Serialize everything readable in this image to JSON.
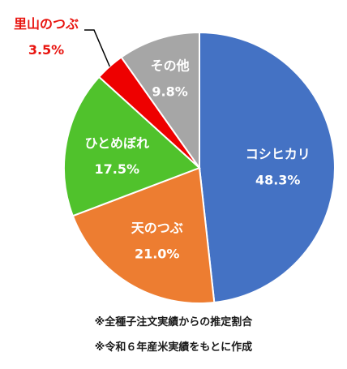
{
  "chart_data": {
    "type": "pie",
    "start_angle_deg": 0,
    "direction": "clockwise",
    "slices": [
      {
        "label": "コシヒカリ",
        "value": 48.3,
        "value_label": "48.3%",
        "color": "#4472c4",
        "label_position": "inside"
      },
      {
        "label": "天のつぶ",
        "value": 21.0,
        "value_label": "21.0%",
        "color": "#ed7d31",
        "label_position": "inside"
      },
      {
        "label": "ひとめぼれ",
        "value": 17.5,
        "value_label": "17.5%",
        "color": "#50c22c",
        "label_position": "inside"
      },
      {
        "label": "里山のつぶ",
        "value": 3.5,
        "value_label": "3.5%",
        "color": "#ee0000",
        "label_position": "outside",
        "label_color": "#e8140f"
      },
      {
        "label": "その他",
        "value": 9.8,
        "value_label": "9.8%",
        "color": "#a6a6a6",
        "label_position": "inside"
      }
    ]
  },
  "notes": [
    "※全種子注文実績からの推定割合",
    "※令和６年産米実績をもとに作成"
  ]
}
